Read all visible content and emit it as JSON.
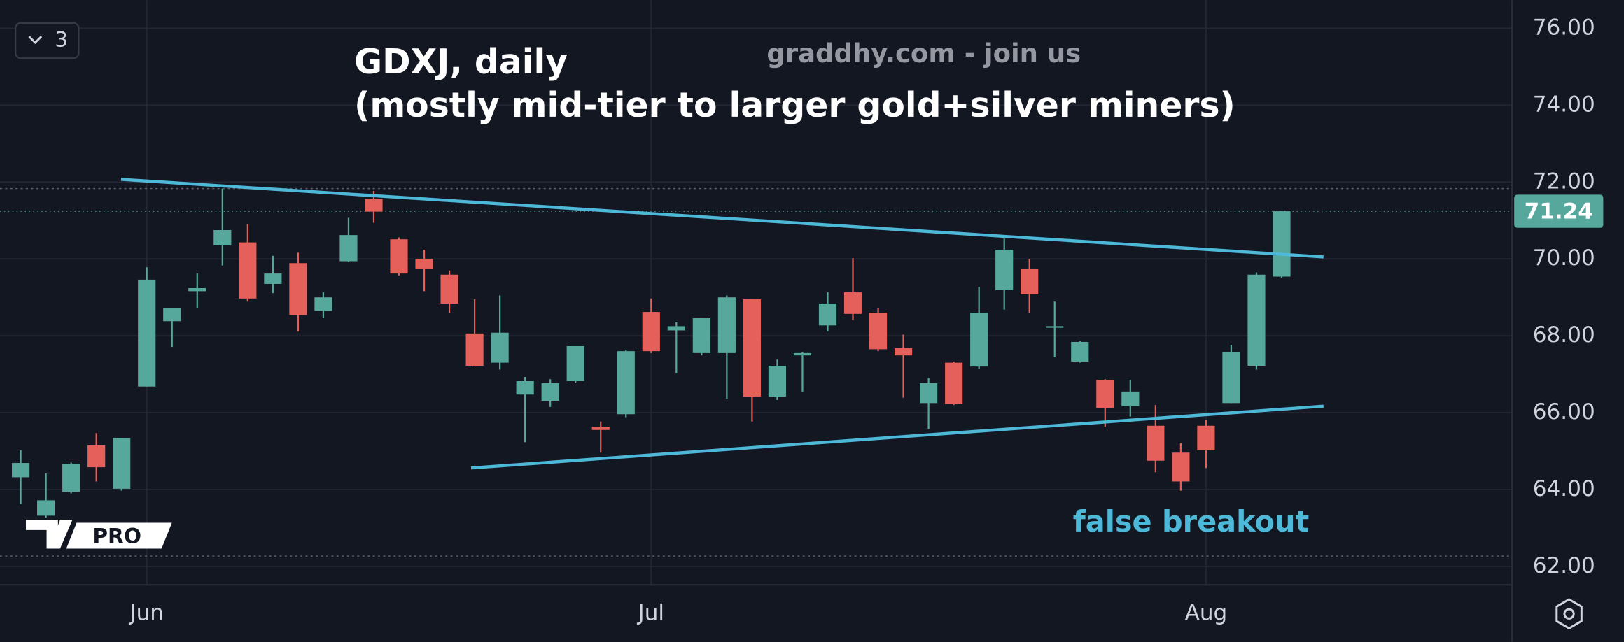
{
  "chart_data": {
    "type": "candlestick",
    "title": "GDXJ, daily",
    "subtitle": "(mostly mid-tier to larger gold+silver miners)",
    "watermark": "graddhy.com - join us",
    "annotation": "false breakout",
    "interval_button": "3",
    "logo_label": "PRO",
    "categories": [
      null,
      null,
      null,
      null,
      null,
      "Jun",
      null,
      null,
      null,
      null,
      null,
      null,
      null,
      null,
      null,
      null,
      null,
      null,
      null,
      null,
      null,
      null,
      null,
      null,
      null,
      "Jul",
      null,
      null,
      null,
      null,
      null,
      null,
      null,
      null,
      null,
      null,
      null,
      null,
      null,
      null,
      null,
      null,
      null,
      null,
      null,
      null,
      null,
      "Aug",
      null,
      null,
      null
    ],
    "open": [
      64.32,
      63.32,
      63.94,
      65.15,
      64.02,
      66.68,
      68.38,
      69.16,
      70.35,
      70.43,
      69.35,
      69.89,
      68.65,
      69.94,
      71.56,
      70.51,
      70.0,
      69.59,
      68.06,
      67.3,
      66.47,
      66.31,
      66.82,
      65.63,
      65.96,
      68.62,
      68.14,
      67.55,
      67.55,
      68.95,
      66.42,
      67.49,
      68.27,
      69.13,
      68.6,
      67.68,
      66.25,
      67.3,
      67.2,
      69.19,
      69.75,
      68.22,
      67.33,
      66.85,
      66.17,
      65.66,
      64.96,
      65.66,
      66.25,
      67.22,
      69.54
    ],
    "high": [
      65.02,
      64.42,
      64.7,
      65.47,
      65.34,
      69.78,
      68.73,
      69.62,
      71.83,
      70.91,
      70.08,
      70.16,
      69.13,
      71.07,
      71.77,
      70.56,
      70.24,
      69.7,
      68.95,
      69.05,
      66.93,
      66.87,
      67.73,
      65.77,
      67.63,
      68.97,
      68.35,
      68.46,
      69.05,
      68.95,
      67.38,
      67.57,
      69.13,
      70.02,
      68.73,
      68.03,
      66.9,
      67.33,
      69.27,
      70.53,
      70.0,
      68.89,
      67.87,
      66.87,
      66.85,
      66.2,
      65.2,
      65.82,
      67.76,
      69.65,
      71.26
    ],
    "low": [
      63.62,
      63.27,
      63.9,
      64.21,
      63.97,
      66.68,
      67.71,
      68.73,
      69.83,
      68.89,
      69.11,
      68.11,
      68.46,
      69.92,
      70.94,
      69.57,
      69.16,
      68.6,
      67.2,
      67.12,
      65.23,
      66.15,
      66.77,
      64.96,
      65.88,
      67.55,
      67.03,
      67.49,
      66.36,
      65.77,
      66.33,
      66.55,
      68.11,
      68.41,
      67.6,
      66.39,
      65.58,
      66.2,
      67.14,
      68.68,
      68.6,
      67.44,
      67.3,
      65.63,
      65.9,
      64.45,
      63.97,
      64.56,
      66.25,
      67.12,
      69.51
    ],
    "close": [
      64.69,
      63.72,
      64.67,
      64.58,
      65.34,
      69.46,
      68.73,
      69.24,
      70.75,
      68.97,
      69.62,
      68.54,
      69.0,
      70.62,
      71.23,
      69.62,
      69.75,
      68.84,
      67.22,
      68.08,
      66.82,
      66.77,
      67.73,
      65.55,
      67.6,
      67.6,
      68.25,
      68.46,
      69.0,
      66.42,
      67.22,
      67.55,
      68.84,
      68.57,
      67.65,
      67.49,
      66.77,
      66.23,
      68.6,
      70.24,
      69.08,
      68.25,
      67.84,
      66.12,
      66.55,
      64.75,
      64.21,
      65.02,
      67.57,
      69.59,
      71.24
    ],
    "up_color": "#56a89c",
    "down_color": "#e5605a",
    "last_price": {
      "value": 71.24,
      "label": "71.24"
    },
    "reference_lines": [
      71.83,
      62.27
    ],
    "trendlines": [
      {
        "x": [
          3.98,
          51.66
        ],
        "y": [
          72.07,
          70.05
        ],
        "color": "#4db8d8"
      },
      {
        "x": [
          17.86,
          51.66
        ],
        "y": [
          64.56,
          66.17
        ],
        "color": "#4db8d8"
      }
    ],
    "ylim": [
      61.52,
      76.73
    ],
    "yticks": [
      {
        "value": 62,
        "label": "62.00"
      },
      {
        "value": 64,
        "label": "64.00"
      },
      {
        "value": 66,
        "label": "66.00"
      },
      {
        "value": 68,
        "label": "68.00"
      },
      {
        "value": 70,
        "label": "70.00"
      },
      {
        "value": 72,
        "label": "72.00"
      },
      {
        "value": 74,
        "label": "74.00"
      },
      {
        "value": 76,
        "label": "76.00"
      }
    ],
    "grid": true
  }
}
